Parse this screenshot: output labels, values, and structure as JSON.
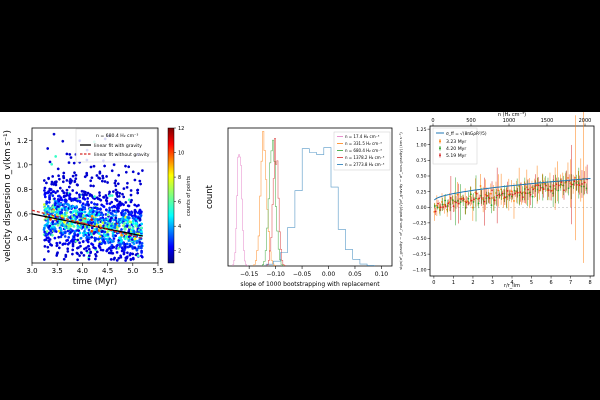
{
  "chart_data": [
    {
      "type": "scatter",
      "panel": "left",
      "xlabel": "time (Myr)",
      "ylabel": "velocity dispersion σ_v(km s⁻¹)",
      "xlim": [
        3.0,
        5.5
      ],
      "ylim": [
        0.2,
        1.3
      ],
      "xticks": [
        "3.0",
        "3.5",
        "4.0",
        "4.5",
        "5.0",
        "5.5"
      ],
      "yticks": [
        "0.4",
        "0.6",
        "0.8",
        "1.0",
        "1.2"
      ],
      "density_note": "n = 680.4 H₂ cm⁻³",
      "legend": [
        "linear fit with gravity",
        "linear fit without gravity"
      ],
      "colorbar": {
        "label": "counts of points",
        "ticks": [
          "2",
          "4",
          "6",
          "8",
          "10",
          "12"
        ],
        "range": [
          1,
          12
        ]
      },
      "fit_with_gravity": {
        "x": [
          3.0,
          5.2
        ],
        "y": [
          0.6,
          0.42
        ]
      },
      "fit_without_gravity": {
        "x": [
          3.0,
          5.2
        ],
        "y": [
          0.63,
          0.4
        ]
      },
      "colors": {
        "fit_with": "#000000",
        "fit_without": "#d62728"
      }
    },
    {
      "type": "step-histogram",
      "panel": "middle",
      "xlabel": "slope of 1000 bootstrapping with replacement",
      "ylabel": "count",
      "xlim": [
        -0.19,
        0.12
      ],
      "ylim": [
        0,
        100
      ],
      "xticks": [
        "−0.15",
        "−0.10",
        "−0.05",
        "0.00",
        "0.05",
        "0.10"
      ],
      "series": [
        {
          "name": "n = 17.4 H₂ cm⁻³",
          "color": "#e377c2",
          "mean": -0.168,
          "width": 0.004,
          "peak": 92
        },
        {
          "name": "n = 331.5 H₂ cm⁻³",
          "color": "#ff7f0e",
          "mean": -0.122,
          "width": 0.006,
          "peak": 88
        },
        {
          "name": "n = 680.4 H₂ cm⁻³",
          "color": "#2ca02c",
          "mean": -0.106,
          "width": 0.006,
          "peak": 90
        },
        {
          "name": "n = 1378.2 H₂ cm⁻³",
          "color": "#d62728",
          "mean": -0.1,
          "width": 0.005,
          "peak": 88
        },
        {
          "name": "n = 2773.8 H₂ cm⁻³",
          "color": "#1f77b4",
          "mean": -0.022,
          "width": 0.03,
          "peak": 96
        }
      ]
    },
    {
      "type": "errorbar-line",
      "panel": "right",
      "xlabel": "r/r_lim",
      "x2label": "n (H₂ cm⁻³)",
      "ylabel": "sign(σ²_gravity − σ²_non-gravity)√|σ²_gravity − σ²_non-gravity| (km s⁻¹)",
      "xlim": [
        -0.2,
        8.2
      ],
      "ylim": [
        -1.1,
        1.3
      ],
      "xticks": [
        "0",
        "1",
        "2",
        "3",
        "4",
        "5",
        "6",
        "7",
        "8"
      ],
      "x2ticks": [
        "0",
        "500",
        "1000",
        "1500",
        "2000"
      ],
      "yticks": [
        "−1.00",
        "−0.75",
        "−0.50",
        "−0.25",
        "0.00",
        "0.25",
        "0.50",
        "0.75",
        "1.00",
        "1.25"
      ],
      "theory_label": "σ_ff = √(8πGρR²/5)",
      "theory_color": "#1f77b4",
      "series": [
        {
          "name": "3.23 Myr",
          "color": "#ff7f0e",
          "trend": [
            0.02,
            0.45
          ],
          "err": 0.18
        },
        {
          "name": "4.20 Myr",
          "color": "#2ca02c",
          "trend": [
            0.02,
            0.4
          ],
          "err": 0.12
        },
        {
          "name": "5.19 Myr",
          "color": "#d62728",
          "trend": [
            0.02,
            0.42
          ],
          "err": 0.1
        }
      ]
    }
  ]
}
